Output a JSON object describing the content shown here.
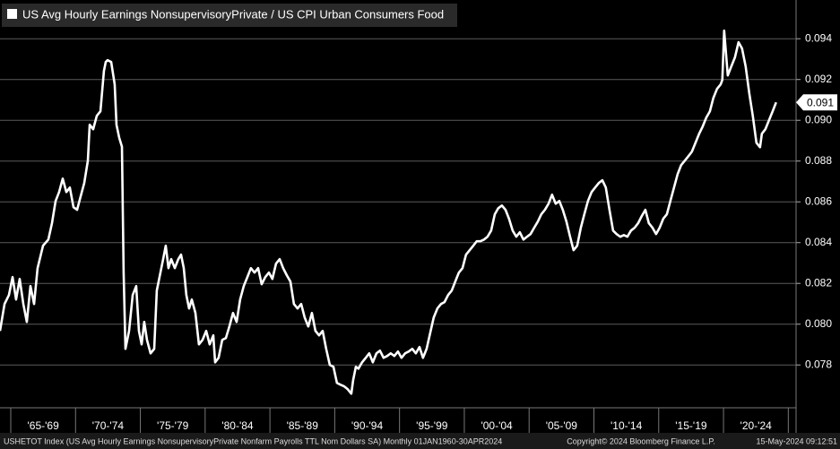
{
  "chart_data": {
    "type": "line",
    "series": [
      {
        "name": "US Avg Hourly Earnings NonsupervisoryPrivate / US CPI Urban Consumers Food",
        "color": "#ffffff",
        "values": [
          0.07967,
          0.08099,
          0.08143,
          0.08231,
          0.08121,
          0.08222,
          0.08099,
          0.08011,
          0.08187,
          0.08099,
          0.08275,
          0.08385,
          0.08415,
          0.08495,
          0.08604,
          0.08648,
          0.08714,
          0.08648,
          0.0867,
          0.08574,
          0.08561,
          0.08626,
          0.08692,
          0.08802,
          0.08978,
          0.08956,
          0.09022,
          0.09044,
          0.09242,
          0.09286,
          0.09295,
          0.09286,
          0.09176,
          0.08978,
          0.08914,
          0.0887,
          0.08253,
          0.07879,
          0.07967,
          0.08143,
          0.08187,
          0.07967,
          0.07901,
          0.08011,
          0.07923,
          0.07857,
          0.07879,
          0.08165,
          0.08231,
          0.08319,
          0.08385,
          0.08275,
          0.08319,
          0.08275,
          0.08319,
          0.08341,
          0.08275,
          0.08143,
          0.08077,
          0.08121,
          0.08055,
          0.07901,
          0.07923,
          0.07967,
          0.07901,
          0.07945,
          0.07813,
          0.07835,
          0.07923,
          0.07932,
          0.07989,
          0.08055,
          0.08011,
          0.08121,
          0.08187,
          0.08231,
          0.08275,
          0.08253,
          0.08275,
          0.08196,
          0.08231,
          0.08253,
          0.08222,
          0.08297,
          0.08319,
          0.08275,
          0.0824,
          0.08209,
          0.08099,
          0.08077,
          0.08099,
          0.08033,
          0.07989,
          0.08055,
          0.07967,
          0.07945,
          0.07967,
          0.07879,
          0.078,
          0.07791,
          0.07712,
          0.07703,
          0.07695,
          0.07681,
          0.07659,
          0.07725,
          0.07791,
          0.07782,
          0.07813,
          0.07835,
          0.07857,
          0.07813,
          0.07857,
          0.0787,
          0.07835,
          0.07844,
          0.07857,
          0.07844,
          0.07866,
          0.07835,
          0.07857,
          0.07866,
          0.07879,
          0.07857,
          0.07888,
          0.07835,
          0.07879,
          0.07958,
          0.08033,
          0.08077,
          0.08099,
          0.08108,
          0.08143,
          0.08165,
          0.08209,
          0.08253,
          0.08275,
          0.08341,
          0.08363,
          0.08385,
          0.08407,
          0.08407,
          0.08415,
          0.08429,
          0.08459,
          0.08539,
          0.08569,
          0.08582,
          0.08561,
          0.08517,
          0.08459,
          0.08429,
          0.08451,
          0.08415,
          0.08429,
          0.08442,
          0.08473,
          0.08503,
          0.08539,
          0.08561,
          0.08591,
          0.08635,
          0.08591,
          0.08604,
          0.08561,
          0.08503,
          0.08429,
          0.08363,
          0.08385,
          0.08473,
          0.08539,
          0.08604,
          0.08648,
          0.0867,
          0.08692,
          0.08706,
          0.0867,
          0.08561,
          0.08459,
          0.08442,
          0.08429,
          0.08437,
          0.08429,
          0.08459,
          0.08473,
          0.08495,
          0.0853,
          0.08561,
          0.08495,
          0.08473,
          0.08442,
          0.08473,
          0.08517,
          0.08539,
          0.08604,
          0.0867,
          0.08736,
          0.0878,
          0.08802,
          0.08824,
          0.08846,
          0.0889,
          0.08934,
          0.08969,
          0.09013,
          0.09044,
          0.0911,
          0.09154,
          0.09176,
          0.09198,
          0.0944,
          0.0933,
          0.0922,
          0.09264,
          0.09308,
          0.09383,
          0.09352,
          0.09264,
          0.09132,
          0.09022,
          0.0889,
          0.08868,
          0.08934,
          0.08956,
          0.09,
          0.09044,
          0.09088
        ]
      }
    ],
    "x": [
      1964.17,
      1964.52,
      1964.86,
      1965.14,
      1965.41,
      1965.69,
      1965.97,
      1966.24,
      1966.52,
      1966.8,
      1967.07,
      1967.49,
      1967.9,
      1968.18,
      1968.46,
      1968.73,
      1969.01,
      1969.29,
      1969.56,
      1969.84,
      1970.12,
      1970.39,
      1970.67,
      1970.95,
      1971.09,
      1971.36,
      1971.64,
      1971.92,
      1972.19,
      1972.33,
      1972.47,
      1972.75,
      1973.02,
      1973.16,
      1973.37,
      1973.58,
      1973.71,
      1973.85,
      1974.13,
      1974.41,
      1974.68,
      1974.89,
      1975.1,
      1975.3,
      1975.51,
      1975.79,
      1976.07,
      1976.27,
      1976.48,
      1976.76,
      1976.96,
      1977.17,
      1977.38,
      1977.66,
      1977.93,
      1978.14,
      1978.35,
      1978.55,
      1978.76,
      1978.97,
      1979.25,
      1979.52,
      1979.8,
      1980.08,
      1980.35,
      1980.63,
      1980.77,
      1981.04,
      1981.32,
      1981.6,
      1981.87,
      1982.15,
      1982.43,
      1982.7,
      1982.98,
      1983.26,
      1983.53,
      1983.81,
      1984.09,
      1984.36,
      1984.64,
      1984.92,
      1985.19,
      1985.47,
      1985.75,
      1986.02,
      1986.3,
      1986.58,
      1986.85,
      1987.13,
      1987.41,
      1987.68,
      1987.96,
      1988.24,
      1988.51,
      1988.79,
      1989.07,
      1989.34,
      1989.62,
      1989.9,
      1990.17,
      1990.45,
      1990.73,
      1991.0,
      1991.28,
      1991.42,
      1991.63,
      1991.83,
      1992.11,
      1992.39,
      1992.66,
      1992.94,
      1993.22,
      1993.49,
      1993.77,
      1994.05,
      1994.32,
      1994.6,
      1994.88,
      1995.15,
      1995.43,
      1995.71,
      1995.98,
      1996.26,
      1996.54,
      1996.81,
      1997.09,
      1997.37,
      1997.64,
      1997.92,
      1998.2,
      1998.47,
      1998.75,
      1999.03,
      1999.3,
      1999.58,
      1999.86,
      2000.13,
      2000.41,
      2000.69,
      2000.96,
      2001.24,
      2001.52,
      2001.79,
      2002.07,
      2002.35,
      2002.62,
      2002.9,
      2003.18,
      2003.45,
      2003.73,
      2004.01,
      2004.28,
      2004.56,
      2004.84,
      2005.11,
      2005.39,
      2005.67,
      2005.94,
      2006.22,
      2006.5,
      2006.77,
      2007.05,
      2007.33,
      2007.6,
      2007.88,
      2008.16,
      2008.43,
      2008.71,
      2008.99,
      2009.26,
      2009.54,
      2009.82,
      2010.09,
      2010.37,
      2010.65,
      2010.92,
      2011.2,
      2011.48,
      2011.75,
      2012.03,
      2012.31,
      2012.58,
      2012.86,
      2013.14,
      2013.41,
      2013.69,
      2013.97,
      2014.24,
      2014.52,
      2014.8,
      2015.07,
      2015.35,
      2015.63,
      2015.9,
      2016.18,
      2016.46,
      2016.73,
      2017.01,
      2017.29,
      2017.56,
      2017.84,
      2018.12,
      2018.39,
      2018.67,
      2018.95,
      2019.22,
      2019.5,
      2019.78,
      2019.91,
      2020.05,
      2020.19,
      2020.33,
      2020.6,
      2020.88,
      2021.16,
      2021.43,
      2021.71,
      2021.99,
      2022.26,
      2022.54,
      2022.82,
      2022.96,
      2023.23,
      2023.51,
      2023.79,
      2024.06
    ],
    "xlim": [
      1964.17,
      2025.6
    ],
    "xticks": [
      {
        "value": 1967.5,
        "label": "'65-'69"
      },
      {
        "value": 1972.5,
        "label": "'70-'74"
      },
      {
        "value": 1977.5,
        "label": "'75-'79"
      },
      {
        "value": 1982.5,
        "label": "'80-'84"
      },
      {
        "value": 1987.5,
        "label": "'85-'89"
      },
      {
        "value": 1992.5,
        "label": "'90-'94"
      },
      {
        "value": 1997.5,
        "label": "'95-'99"
      },
      {
        "value": 2002.5,
        "label": "'00-'04"
      },
      {
        "value": 2007.5,
        "label": "'05-'09"
      },
      {
        "value": 2012.5,
        "label": "'10-'14"
      },
      {
        "value": 2017.5,
        "label": "'15-'19"
      },
      {
        "value": 2022.5,
        "label": "'20-'24"
      }
    ],
    "ylim": [
      0.0759,
      0.0959
    ],
    "yticks": [
      0.078,
      {
        "value": 0.08,
        "label": "0.080"
      },
      0.082,
      0.084,
      0.086,
      0.088,
      {
        "value": 0.09,
        "label": "0.090"
      },
      0.092,
      0.094
    ],
    "grid": true,
    "last_value_label": "0.091",
    "footer_left": "USHETOT Index (US Avg Hourly Earnings NonsupervisoryPrivate Nonfarm Payrolls TTL Nom Dollars SA)  Monthly 01JAN1960-30APR2024",
    "footer_center": "Copyright© 2024 Bloomberg Finance L.P.",
    "footer_right": "15-May-2024 09:12:51"
  }
}
